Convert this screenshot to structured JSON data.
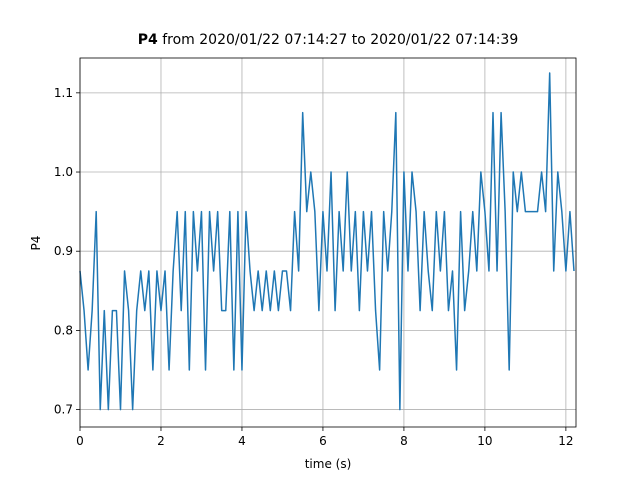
{
  "chart_data": {
    "type": "line",
    "title": {
      "bold": "P4",
      "text": "from 2020/01/22 07:14:27 to 2020/01/22 07:14:39"
    },
    "xlabel": "time (s)",
    "ylabel": "P4",
    "x": [
      0,
      0.1,
      0.2,
      0.3,
      0.4,
      0.5,
      0.6,
      0.7,
      0.8,
      0.9,
      1,
      1.1,
      1.2,
      1.3,
      1.4,
      1.5,
      1.6,
      1.7,
      1.8,
      1.9,
      2,
      2.1,
      2.2,
      2.3,
      2.4,
      2.5,
      2.6,
      2.7,
      2.8,
      2.9,
      3,
      3.1,
      3.2,
      3.3,
      3.4,
      3.5,
      3.6,
      3.7,
      3.8,
      3.9,
      4,
      4.1,
      4.2,
      4.3,
      4.4,
      4.5,
      4.6,
      4.7,
      4.8,
      4.9,
      5,
      5.1,
      5.2,
      5.3,
      5.4,
      5.5,
      5.6,
      5.7,
      5.8,
      5.9,
      6,
      6.1,
      6.2,
      6.3,
      6.4,
      6.5,
      6.6,
      6.7,
      6.8,
      6.9,
      7,
      7.1,
      7.2,
      7.3,
      7.4,
      7.5,
      7.6,
      7.7,
      7.8,
      7.9,
      8,
      8.1,
      8.2,
      8.3,
      8.4,
      8.5,
      8.6,
      8.7,
      8.8,
      8.9,
      9,
      9.1,
      9.2,
      9.3,
      9.4,
      9.5,
      9.6,
      9.7,
      9.8,
      9.9,
      10,
      10.1,
      10.2,
      10.3,
      10.4,
      10.5,
      10.6,
      10.7,
      10.8,
      10.9,
      11,
      11.1,
      11.2,
      11.3,
      11.4,
      11.5,
      11.6,
      11.7,
      11.8,
      11.9,
      12,
      12.1,
      12.2
    ],
    "series": [
      {
        "name": "P4",
        "color": "#1f77b4",
        "values": [
          0.875,
          0.825,
          0.75,
          0.825,
          0.95,
          0.7,
          0.825,
          0.7,
          0.825,
          0.825,
          0.7,
          0.875,
          0.825,
          0.7,
          0.825,
          0.875,
          0.825,
          0.875,
          0.75,
          0.875,
          0.825,
          0.875,
          0.75,
          0.875,
          0.95,
          0.825,
          0.95,
          0.75,
          0.95,
          0.875,
          0.95,
          0.75,
          0.95,
          0.875,
          0.95,
          0.825,
          0.825,
          0.95,
          0.75,
          0.95,
          0.75,
          0.95,
          0.875,
          0.825,
          0.875,
          0.825,
          0.875,
          0.825,
          0.875,
          0.825,
          0.875,
          0.875,
          0.825,
          0.95,
          0.875,
          1.075,
          0.95,
          1.0,
          0.95,
          0.825,
          0.95,
          0.875,
          1.0,
          0.825,
          0.95,
          0.875,
          1.0,
          0.875,
          0.95,
          0.825,
          0.95,
          0.875,
          0.95,
          0.825,
          0.75,
          0.95,
          0.875,
          0.95,
          1.075,
          0.7,
          1.0,
          0.875,
          1.0,
          0.95,
          0.825,
          0.95,
          0.875,
          0.825,
          0.95,
          0.875,
          0.95,
          0.825,
          0.875,
          0.75,
          0.95,
          0.825,
          0.875,
          0.95,
          0.875,
          1.0,
          0.95,
          0.875,
          1.075,
          0.875,
          1.075,
          0.95,
          0.75,
          1.0,
          0.95,
          1.0,
          0.95,
          0.95,
          0.95,
          0.95,
          1.0,
          0.95,
          1.125,
          0.875,
          1.0,
          0.95,
          0.875,
          0.95,
          0.875
        ]
      }
    ],
    "xlim": [
      0,
      12.25
    ],
    "ylim": [
      0.678,
      1.144
    ],
    "xticks": [
      0,
      2,
      4,
      6,
      8,
      10,
      12
    ],
    "yticks": [
      0.7,
      0.8,
      0.9,
      {
        "value": 1.0,
        "label": "1.0"
      },
      1.1
    ],
    "grid": true
  }
}
